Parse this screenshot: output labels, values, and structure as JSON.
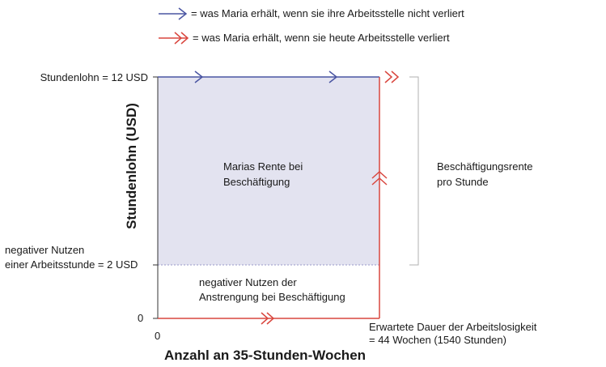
{
  "legend": {
    "blue_text": "= was Maria erhält, wenn sie ihre Arbeitsstelle nicht verliert",
    "red_text": "= was Maria erhält, wenn sie heute Arbeitsstelle verliert"
  },
  "axes": {
    "y_title": "Stundenlohn (USD)",
    "x_title": "Anzahl an 35-Stunden-Wochen",
    "y_tick_wage": "Stundenlohn = 12 USD",
    "y_tick_disutility_line1": "negativer Nutzen",
    "y_tick_disutility_line2": "einer Arbeitsstunde = 2 USD",
    "y_tick_zero": "0",
    "x_tick_zero": "0",
    "x_tick_duration_line1": "Erwartete Dauer der Arbeitslosigkeit",
    "x_tick_duration_line2": "= 44 Wochen (1540 Stunden)"
  },
  "regions": {
    "rent_line1": "Marias Rente bei",
    "rent_line2": "Beschäftigung",
    "disutility_line1": "negativer Nutzen der",
    "disutility_line2": "Anstrengung bei Beschäftigung"
  },
  "bracket": {
    "label_line1": "Beschäftigungsrente",
    "label_line2": "pro Stunde"
  },
  "colors": {
    "blue": "#4a55a2",
    "red": "#d9473f",
    "fill": "#e3e3f0",
    "dotted": "#9a9ac8",
    "bracket": "#b0b0b0"
  },
  "values": {
    "wage_usd": 12,
    "disutility_usd": 2,
    "unemployment_weeks": 44,
    "unemployment_hours": 1540
  }
}
